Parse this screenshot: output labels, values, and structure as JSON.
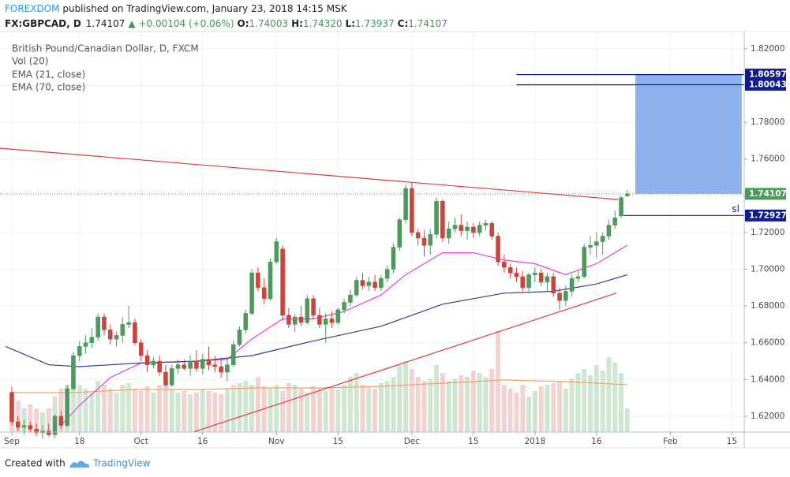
{
  "header": {
    "author": "FOREXDOM",
    "published": " published on TradingView.com, January 23, 2018 14:15 MSK",
    "symbol": "FX:GBPCAD, D",
    "last": "1.74107",
    "change": "▲ +0.00104 (+0.06%)",
    "ohlc": [
      {
        "label": "O:",
        "value": "1.74003"
      },
      {
        "label": "H:",
        "value": "1.74320"
      },
      {
        "label": "L:",
        "value": "1.73937"
      },
      {
        "label": "C:",
        "value": "1.74107"
      }
    ]
  },
  "footer": {
    "created": "Created with",
    "brand": "TradingView"
  },
  "chart_data": {
    "type": "candlestick",
    "title": "British Pound/Canadian Dollar, D, FXCM",
    "up_color": "#4e9a5e",
    "down_color": "#c9463d",
    "xlim": [
      -1.92,
      119
    ],
    "ylim": [
      1.6114,
      1.8294
    ],
    "grid": true,
    "xticks": [
      {
        "value": 0,
        "label": "Sep"
      },
      {
        "value": 11,
        "label": "18"
      },
      {
        "value": 21,
        "label": "Oct"
      },
      {
        "value": 31,
        "label": "16"
      },
      {
        "value": 43,
        "label": "Nov"
      },
      {
        "value": 53,
        "label": "15"
      },
      {
        "value": 65,
        "label": "Dec"
      },
      {
        "value": 75,
        "label": "15"
      },
      {
        "value": 85,
        "label": "2018"
      },
      {
        "value": 95,
        "label": "16"
      },
      {
        "value": 107,
        "label": "Feb"
      },
      {
        "value": 117,
        "label": "15"
      }
    ],
    "yticks": [
      {
        "value": 1.62,
        "label": "1.62000"
      },
      {
        "value": 1.64,
        "label": "1.64000"
      },
      {
        "value": 1.66,
        "label": "1.66000"
      },
      {
        "value": 1.68,
        "label": "1.68000"
      },
      {
        "value": 1.7,
        "label": "1.70000"
      },
      {
        "value": 1.72,
        "label": "1.72000"
      },
      {
        "value": 1.74,
        "label": "1.74000"
      },
      {
        "value": 1.76,
        "label": "1.76000"
      },
      {
        "value": 1.78,
        "label": "1.78000"
      },
      {
        "value": 1.8,
        "label": "1.80000"
      },
      {
        "value": 1.82,
        "label": "1.82000"
      }
    ],
    "x": [
      0,
      1,
      2,
      3,
      4,
      5,
      6,
      7,
      8,
      9,
      10,
      11,
      12,
      13,
      14,
      15,
      16,
      17,
      18,
      19,
      20,
      21,
      22,
      23,
      24,
      25,
      26,
      27,
      28,
      29,
      30,
      31,
      32,
      33,
      34,
      35,
      36,
      37,
      38,
      39,
      40,
      41,
      42,
      43,
      44,
      45,
      46,
      47,
      48,
      49,
      50,
      51,
      52,
      53,
      54,
      55,
      56,
      57,
      58,
      59,
      60,
      61,
      62,
      63,
      64,
      65,
      66,
      67,
      68,
      69,
      70,
      71,
      72,
      73,
      74,
      75,
      76,
      77,
      78,
      79,
      80,
      81,
      82,
      83,
      84,
      85,
      86,
      87,
      88,
      89,
      90,
      91,
      92,
      93,
      94,
      95,
      96,
      97,
      98,
      99,
      100
    ],
    "candles": [
      [
        1.633,
        1.636,
        1.615,
        1.617
      ],
      [
        1.617,
        1.62,
        1.612,
        1.614
      ],
      [
        1.614,
        1.618,
        1.61,
        1.615
      ],
      [
        1.615,
        1.617,
        1.611,
        1.613
      ],
      [
        1.613,
        1.616,
        1.609,
        1.611
      ],
      [
        1.611,
        1.615,
        1.608,
        1.612
      ],
      [
        1.612,
        1.616,
        1.609,
        1.61
      ],
      [
        1.61,
        1.621,
        1.608,
        1.62
      ],
      [
        1.62,
        1.623,
        1.613,
        1.615
      ],
      [
        1.615,
        1.637,
        1.614,
        1.635
      ],
      [
        1.635,
        1.655,
        1.634,
        1.653
      ],
      [
        1.653,
        1.661,
        1.65,
        1.658
      ],
      [
        1.658,
        1.664,
        1.654,
        1.66
      ],
      [
        1.66,
        1.668,
        1.657,
        1.663
      ],
      [
        1.663,
        1.676,
        1.661,
        1.674
      ],
      [
        1.674,
        1.676,
        1.664,
        1.667
      ],
      [
        1.667,
        1.67,
        1.659,
        1.662
      ],
      [
        1.662,
        1.666,
        1.658,
        1.664
      ],
      [
        1.664,
        1.674,
        1.66,
        1.67
      ],
      [
        1.67,
        1.68,
        1.668,
        1.671
      ],
      [
        1.671,
        1.673,
        1.659,
        1.66
      ],
      [
        1.66,
        1.662,
        1.65,
        1.653
      ],
      [
        1.653,
        1.656,
        1.644,
        1.648
      ],
      [
        1.648,
        1.652,
        1.646,
        1.65
      ],
      [
        1.65,
        1.653,
        1.642,
        1.644
      ],
      [
        1.644,
        1.648,
        1.636,
        1.637
      ],
      [
        1.637,
        1.648,
        1.636,
        1.646
      ],
      [
        1.646,
        1.651,
        1.643,
        1.648
      ],
      [
        1.648,
        1.651,
        1.645,
        1.646
      ],
      [
        1.646,
        1.653,
        1.642,
        1.65
      ],
      [
        1.65,
        1.656,
        1.644,
        1.646
      ],
      [
        1.646,
        1.654,
        1.643,
        1.651
      ],
      [
        1.651,
        1.658,
        1.645,
        1.648
      ],
      [
        1.648,
        1.653,
        1.644,
        1.647
      ],
      [
        1.647,
        1.652,
        1.641,
        1.644
      ],
      [
        1.644,
        1.651,
        1.639,
        1.648
      ],
      [
        1.648,
        1.661,
        1.647,
        1.659
      ],
      [
        1.659,
        1.669,
        1.658,
        1.667
      ],
      [
        1.667,
        1.678,
        1.665,
        1.676
      ],
      [
        1.676,
        1.7,
        1.675,
        1.698
      ],
      [
        1.698,
        1.701,
        1.688,
        1.69
      ],
      [
        1.69,
        1.695,
        1.681,
        1.684
      ],
      [
        1.684,
        1.706,
        1.683,
        1.704
      ],
      [
        1.704,
        1.717,
        1.703,
        1.715
      ],
      [
        1.711,
        1.713,
        1.672,
        1.675
      ],
      [
        1.675,
        1.679,
        1.668,
        1.67
      ],
      [
        1.67,
        1.676,
        1.666,
        1.674
      ],
      [
        1.674,
        1.68,
        1.669,
        1.671
      ],
      [
        1.671,
        1.686,
        1.67,
        1.684
      ],
      [
        1.684,
        1.686,
        1.673,
        1.675
      ],
      [
        1.675,
        1.679,
        1.668,
        1.67
      ],
      [
        1.67,
        1.676,
        1.66,
        1.673
      ],
      [
        1.673,
        1.677,
        1.668,
        1.671
      ],
      [
        1.671,
        1.679,
        1.67,
        1.678
      ],
      [
        1.678,
        1.684,
        1.676,
        1.682
      ],
      [
        1.682,
        1.689,
        1.68,
        1.686
      ],
      [
        1.686,
        1.696,
        1.685,
        1.694
      ],
      [
        1.694,
        1.698,
        1.689,
        1.691
      ],
      [
        1.691,
        1.696,
        1.688,
        1.693
      ],
      [
        1.693,
        1.697,
        1.688,
        1.69
      ],
      [
        1.69,
        1.697,
        1.688,
        1.695
      ],
      [
        1.695,
        1.702,
        1.693,
        1.7
      ],
      [
        1.7,
        1.714,
        1.698,
        1.712
      ],
      [
        1.712,
        1.728,
        1.71,
        1.727
      ],
      [
        1.727,
        1.746,
        1.725,
        1.744
      ],
      [
        1.744,
        1.747,
        1.718,
        1.72
      ],
      [
        1.72,
        1.722,
        1.713,
        1.717
      ],
      [
        1.717,
        1.721,
        1.707,
        1.713
      ],
      [
        1.713,
        1.722,
        1.708,
        1.719
      ],
      [
        1.719,
        1.739,
        1.717,
        1.737
      ],
      [
        1.737,
        1.738,
        1.715,
        1.717
      ],
      [
        1.717,
        1.726,
        1.714,
        1.722
      ],
      [
        1.722,
        1.728,
        1.72,
        1.724
      ],
      [
        1.724,
        1.73,
        1.718,
        1.721
      ],
      [
        1.721,
        1.726,
        1.716,
        1.723
      ],
      [
        1.723,
        1.725,
        1.717,
        1.72
      ],
      [
        1.72,
        1.726,
        1.718,
        1.724
      ],
      [
        1.724,
        1.727,
        1.721,
        1.725
      ],
      [
        1.725,
        1.726,
        1.716,
        1.718
      ],
      [
        1.718,
        1.72,
        1.702,
        1.704
      ],
      [
        1.704,
        1.708,
        1.698,
        1.701
      ],
      [
        1.701,
        1.703,
        1.695,
        1.698
      ],
      [
        1.698,
        1.701,
        1.693,
        1.696
      ],
      [
        1.696,
        1.699,
        1.688,
        1.69
      ],
      [
        1.69,
        1.698,
        1.687,
        1.697
      ],
      [
        1.697,
        1.701,
        1.693,
        1.698
      ],
      [
        1.698,
        1.7,
        1.691,
        1.693
      ],
      [
        1.693,
        1.698,
        1.688,
        1.696
      ],
      [
        1.696,
        1.698,
        1.685,
        1.687
      ],
      [
        1.687,
        1.69,
        1.678,
        1.683
      ],
      [
        1.683,
        1.691,
        1.68,
        1.688
      ],
      [
        1.688,
        1.697,
        1.685,
        1.695
      ],
      [
        1.695,
        1.699,
        1.693,
        1.696
      ],
      [
        1.696,
        1.714,
        1.695,
        1.712
      ],
      [
        1.712,
        1.718,
        1.708,
        1.713
      ],
      [
        1.713,
        1.72,
        1.706,
        1.715
      ],
      [
        1.715,
        1.72,
        1.708,
        1.718
      ],
      [
        1.718,
        1.727,
        1.716,
        1.724
      ],
      [
        1.724,
        1.732,
        1.722,
        1.728
      ],
      [
        1.729,
        1.74,
        1.728,
        1.739
      ],
      [
        1.74003,
        1.7432,
        1.73937,
        1.74107
      ]
    ],
    "volume": {
      "name": "Vol (20)",
      "up_color": "#cfe6d2",
      "down_color": "#f2d3d3",
      "values": [
        50,
        40,
        30,
        35,
        30,
        25,
        30,
        45,
        55,
        60,
        70,
        60,
        55,
        50,
        65,
        60,
        55,
        50,
        60,
        62,
        55,
        52,
        58,
        50,
        60,
        65,
        55,
        50,
        52,
        48,
        50,
        55,
        52,
        50,
        48,
        55,
        60,
        62,
        65,
        60,
        70,
        58,
        55,
        60,
        52,
        62,
        60,
        55,
        50,
        58,
        55,
        52,
        56,
        54,
        60,
        70,
        75,
        60,
        58,
        55,
        62,
        65,
        70,
        85,
        90,
        80,
        70,
        65,
        68,
        85,
        75,
        65,
        68,
        72,
        70,
        78,
        75,
        70,
        80,
        128,
        60,
        55,
        50,
        60,
        45,
        52,
        58,
        60,
        62,
        65,
        55,
        68,
        75,
        80,
        72,
        85,
        78,
        95,
        88,
        75,
        30
      ],
      "ma": {
        "color": "#f4a460",
        "x": [
          0,
          10,
          20,
          30,
          40,
          50,
          60,
          70,
          80,
          90,
          100
        ],
        "values": [
          50,
          50,
          54,
          54,
          56,
          56,
          58,
          62,
          66,
          64,
          60
        ]
      }
    },
    "series": [
      {
        "name": "EMA (21, close)",
        "color": "#e83de8",
        "x": [
          8,
          11,
          16,
          21,
          30,
          35,
          39,
          44,
          49,
          54,
          60,
          64,
          70,
          75,
          80,
          85,
          90,
          95,
          100
        ],
        "values": [
          1.615,
          1.626,
          1.641,
          1.649,
          1.65,
          1.651,
          1.662,
          1.673,
          1.673,
          1.677,
          1.686,
          1.697,
          1.709,
          1.709,
          1.705,
          1.703,
          1.697,
          1.703,
          1.713
        ]
      },
      {
        "name": "EMA (70, close)",
        "color": "#2e3f8f",
        "x": [
          -1,
          6,
          11,
          21,
          30,
          39,
          49,
          60,
          65,
          70,
          80,
          88,
          95,
          100
        ],
        "values": [
          1.658,
          1.648,
          1.647,
          1.649,
          1.65,
          1.653,
          1.661,
          1.669,
          1.675,
          1.681,
          1.687,
          1.688,
          1.692,
          1.697
        ]
      }
    ],
    "trendlines": [
      {
        "color": "#e53935",
        "x": [
          -1.92,
          98.5
        ],
        "values": [
          1.7659,
          1.738
        ]
      },
      {
        "color": "#e53935",
        "x": [
          29.5,
          98.2
        ],
        "values": [
          1.6114,
          1.687
        ]
      }
    ],
    "position": {
      "start": 101.3,
      "end": 118.6,
      "top": 1.80597,
      "bottom": 1.74107,
      "color": "#8fb2ee"
    },
    "levels": [
      {
        "value": 1.80597,
        "label": "1.80597",
        "start": 82,
        "color": "#101d8c"
      },
      {
        "value": 1.80043,
        "label": "1.80043",
        "start": 82,
        "color": "#101d8c"
      },
      {
        "value": 1.72927,
        "label": "1.72927",
        "start": 99.4,
        "color": "#101d8c",
        "text": "sl"
      }
    ],
    "last_price": {
      "value": 1.74107,
      "label": "1.74107",
      "color": "#4a9c5d"
    }
  }
}
